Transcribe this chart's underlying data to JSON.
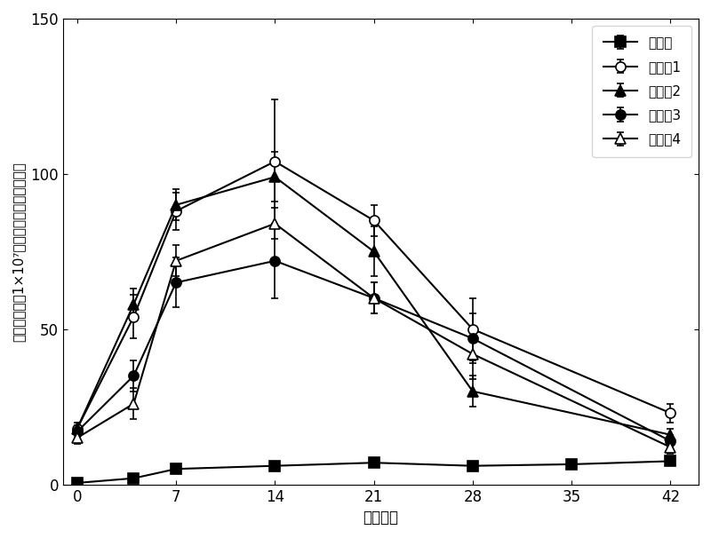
{
  "x": [
    0,
    4,
    7,
    14,
    21,
    28,
    35,
    42
  ],
  "series": {
    "对照组": {
      "y": [
        0.5,
        2.0,
        5.0,
        6.0,
        7.0,
        6.0,
        6.5,
        7.5
      ],
      "yerr": [
        0.3,
        0.4,
        0.5,
        0.5,
        0.5,
        0.5,
        0.3,
        0.5
      ],
      "marker": "s",
      "fillstyle": "full",
      "markersize": 8,
      "linestyle": "-"
    },
    "实验组1": {
      "y": [
        18,
        54,
        88,
        104,
        85,
        50,
        null,
        23
      ],
      "yerr": [
        2,
        7,
        6,
        20,
        5,
        10,
        0,
        3
      ],
      "marker": "o",
      "fillstyle": "none",
      "markersize": 8,
      "linestyle": "-"
    },
    "实验组2": {
      "y": [
        18,
        58,
        90,
        99,
        75,
        30,
        null,
        16
      ],
      "yerr": [
        2,
        5,
        5,
        8,
        8,
        5,
        0,
        2
      ],
      "marker": "^",
      "fillstyle": "full",
      "markersize": 8,
      "linestyle": "-"
    },
    "实验组3": {
      "y": [
        17,
        35,
        65,
        72,
        60,
        47,
        null,
        14
      ],
      "yerr": [
        2,
        5,
        8,
        12,
        5,
        8,
        0,
        2
      ],
      "marker": "o",
      "fillstyle": "full",
      "markersize": 8,
      "linestyle": "-"
    },
    "实验组4": {
      "y": [
        15,
        26,
        72,
        84,
        60,
        42,
        null,
        12
      ],
      "yerr": [
        2,
        5,
        5,
        5,
        5,
        8,
        0,
        2
      ],
      "marker": "^",
      "fillstyle": "none",
      "markersize": 8,
      "linestyle": "-"
    }
  },
  "xlabel": "堆制天数",
  "ylabel_line1": "微生物浓度（1×10",
  "ylabel_line2": "菌落形成单位／克干重）",
  "ylabel_superscript": "7",
  "ylim": [
    0,
    150
  ],
  "yticks": [
    0,
    50,
    100,
    150
  ],
  "xticks": [
    0,
    7,
    14,
    21,
    28,
    35,
    42
  ],
  "legend_order": [
    "对照组",
    "实验组1",
    "实验组2",
    "实验组3",
    "实验组4"
  ],
  "legend_labels": [
    "对照组",
    "实验组1",
    "实验组2",
    "实验组3",
    "实验组4"
  ]
}
